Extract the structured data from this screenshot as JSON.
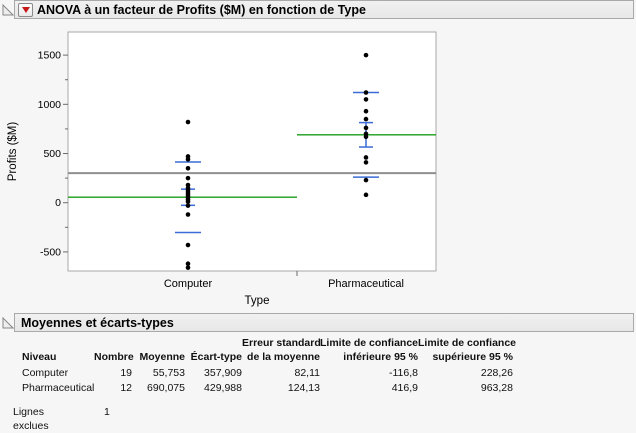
{
  "window": {
    "bg": "#f6f6f7",
    "header_bg": "#ececec",
    "header_border": "#a9a9a9"
  },
  "outlines": {
    "anova": {
      "title": "ANOVA à un facteur de Profits ($M) en fonction de Type"
    },
    "means": {
      "title": "Moyennes et écarts-types"
    }
  },
  "chart_data": {
    "type": "scatter",
    "title": "ANOVA à un facteur de Profits ($M) en fonction de Type",
    "xlabel": "Type",
    "ylabel": "Profits ($M)",
    "ylim": [
      -694,
      1735
    ],
    "yticks": [
      -500,
      0,
      500,
      1000,
      1500
    ],
    "yticks_minor": [
      -250,
      250,
      750,
      1250
    ],
    "grid": false,
    "legend": "none",
    "categories": [
      "Computer",
      "Pharmaceutical"
    ],
    "series": [
      {
        "name": "Computer",
        "values": [
          820,
          470,
          440,
          350,
          250,
          180,
          150,
          130,
          110,
          90,
          70,
          50,
          30,
          10,
          -30,
          -120,
          -430,
          -620,
          -660
        ]
      },
      {
        "name": "Pharmaceutical",
        "values": [
          1500,
          1120,
          1050,
          930,
          850,
          760,
          700,
          670,
          460,
          410,
          230,
          80
        ]
      }
    ],
    "overlays": {
      "grand_mean": 301,
      "groups": [
        {
          "name": "Computer",
          "mean": 55.753,
          "mean_minus_sd": -302.16,
          "mean_plus_sd": 413.66,
          "mean_minus_se": -26.36,
          "mean_plus_se": 137.86
        },
        {
          "name": "Pharmaceutical",
          "mean": 690.075,
          "mean_minus_sd": 260.09,
          "mean_plus_sd": 1120.06,
          "mean_minus_se": 565.95,
          "mean_plus_se": 814.21
        }
      ]
    },
    "colors": {
      "point": "#000000",
      "mean_line": "#1a9c1a",
      "std_line": "#3a6bd6",
      "grand_mean_line": "#8f8f8f",
      "frame": "#a8a8a8"
    }
  },
  "table": {
    "header_line1": [
      "",
      "",
      "",
      "",
      "Erreur standard",
      "Limite de confiance",
      "Limite de confiance"
    ],
    "header_line2": [
      "Niveau",
      "Nombre",
      "Moyenne",
      "Écart-type",
      "de la moyenne",
      "inférieure 95 %",
      "supérieure 95 %"
    ],
    "rows": [
      [
        "Computer",
        "19",
        "55,753",
        "357,909",
        "82,11",
        "-116,8",
        "228,26"
      ],
      [
        "Pharmaceutical",
        "12",
        "690,075",
        "429,988",
        "124,13",
        "416,9",
        "963,28"
      ]
    ],
    "footer": {
      "label": "Lignes exclues",
      "value": "1"
    }
  }
}
